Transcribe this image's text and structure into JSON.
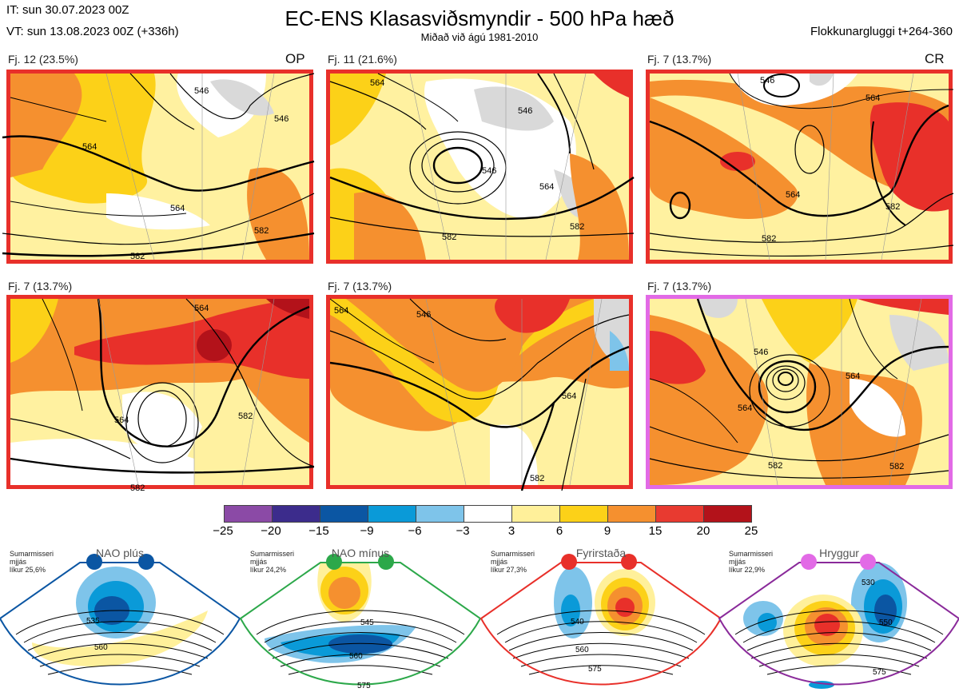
{
  "header": {
    "it_line": "IT: sun 30.07.2023 00Z",
    "vt_line": "VT: sun 13.08.2023 00Z  (+336h)",
    "title": "EC-ENS Klasasviðsmyndir - 500 hPa hæð",
    "subtitle": "Miðað við ágú 1981-2010",
    "window": "Flokkunargluggi t+264-360"
  },
  "panels": [
    {
      "label": "Fj. 12 (23.5%)",
      "tag": "OP",
      "contours": [
        "564",
        "564",
        "582",
        "546",
        "546",
        "582"
      ],
      "border": "#e8302a"
    },
    {
      "label": "Fj. 11 (21.6%)",
      "tag": "",
      "contours": [
        "564",
        "546",
        "546",
        "564",
        "582",
        "582"
      ],
      "border": "#e8302a"
    },
    {
      "label": "Fj. 7 (13.7%)",
      "tag": "CR",
      "contours": [
        "546",
        "564",
        "564",
        "582",
        "582"
      ],
      "border": "#e8302a"
    },
    {
      "label": "Fj. 7 (13.7%)",
      "tag": "",
      "contours": [
        "564",
        "564",
        "582",
        "582"
      ],
      "border": "#e8302a"
    },
    {
      "label": "Fj. 7 (13.7%)",
      "tag": "",
      "contours": [
        "564",
        "546",
        "564",
        "582"
      ],
      "border": "#e8302a"
    },
    {
      "label": "Fj. 7 (13.7%)",
      "tag": "",
      "contours": [
        "546",
        "564",
        "564",
        "582",
        "582"
      ],
      "border": "#e26ae6"
    }
  ],
  "colorbar": {
    "ticks": [
      "−25",
      "−20",
      "−15",
      "−9",
      "−6",
      "−3",
      "3",
      "6",
      "9",
      "15",
      "20",
      "25"
    ],
    "colors": [
      "#8b4aa6",
      "#3c2c8c",
      "#0b56a3",
      "#0a9ad8",
      "#7ec4ea",
      "#ffffff",
      "#fff09a",
      "#fcd118",
      "#f5902f",
      "#e83a30",
      "#b3121a"
    ]
  },
  "regimes": [
    {
      "name": "NAO plús",
      "info": [
        "Sumarmisseri",
        "mjjás",
        "líkur 25,6%"
      ],
      "border": "#0b56a3",
      "dot": "#0b56a3",
      "contours": [
        "535",
        "560"
      ]
    },
    {
      "name": "NAO mínus",
      "info": [
        "Sumarmisseri",
        "mjjás",
        "líkur 24,2%"
      ],
      "border": "#2ca84a",
      "dot": "#2ca84a",
      "contours": [
        "545",
        "560",
        "575"
      ]
    },
    {
      "name": "Fyrirstaða",
      "info": [
        "Sumarmisseri",
        "mjjás",
        "líkur 27,3%"
      ],
      "border": "#e8302a",
      "dot": "#e8302a",
      "contours": [
        "540",
        "560",
        "575"
      ]
    },
    {
      "name": "Hryggur",
      "info": [
        "Sumarmisseri",
        "mjjás",
        "líkur 22,9%"
      ],
      "border": "#8a2a9a",
      "dot": "#e26ae6",
      "contours": [
        "530",
        "550",
        "575"
      ]
    }
  ]
}
